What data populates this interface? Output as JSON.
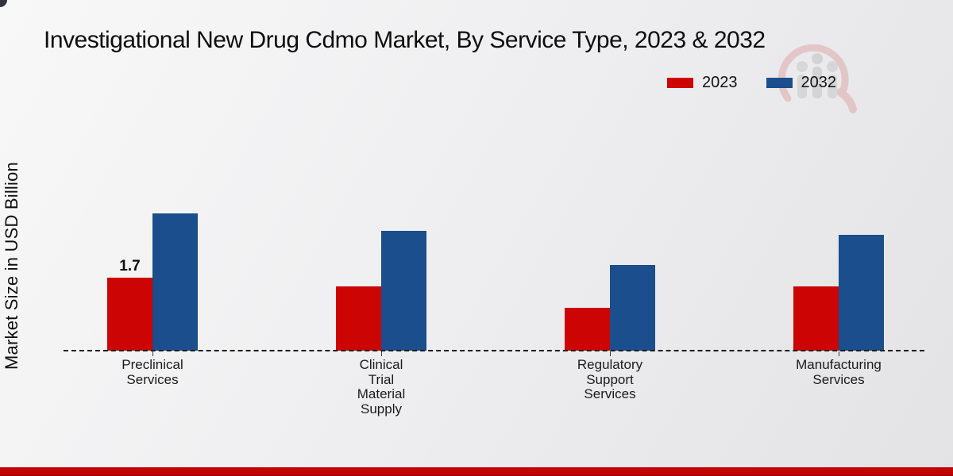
{
  "header": {
    "title": "Investigational New Drug Cdmo Market, By Service Type, 2023 & 2032"
  },
  "legend": {
    "items": [
      {
        "label": "2023",
        "color": "#cc0404"
      },
      {
        "label": "2032",
        "color": "#1a4e8c"
      }
    ]
  },
  "y_axis": {
    "label": "Market Size in USD Billion"
  },
  "watermark": {
    "icon": "market-research-logo-watermark"
  },
  "footer": {
    "bar_color": "#c40404"
  },
  "chart_data": {
    "type": "bar",
    "title": "Investigational New Drug Cdmo Market, By Service Type, 2023 & 2032",
    "categories": [
      "Preclinical Services",
      "Clinical Trial Material Supply",
      "Regulatory Support Services",
      "Manufacturing Services"
    ],
    "category_line_breaks": [
      [
        "Preclinical",
        "Services"
      ],
      [
        "Clinical",
        "Trial",
        "Material",
        "Supply"
      ],
      [
        "Regulatory",
        "Support",
        "Services"
      ],
      [
        "Manufacturing",
        "Services"
      ]
    ],
    "series": [
      {
        "name": "2023",
        "color": "#cc0404",
        "values": [
          1.7,
          1.5,
          1.0,
          1.5
        ],
        "value_labels": [
          "1.7",
          "",
          "",
          ""
        ]
      },
      {
        "name": "2032",
        "color": "#1a4e8c",
        "values": [
          3.2,
          2.8,
          2.0,
          2.7
        ],
        "value_labels": [
          "",
          "",
          "",
          ""
        ]
      }
    ],
    "xlabel": "",
    "ylabel": "Market Size in USD Billion",
    "ylim": [
      0,
      3.5
    ],
    "grid": false,
    "legend_position": "top-right",
    "baseline_style": "dashed"
  }
}
